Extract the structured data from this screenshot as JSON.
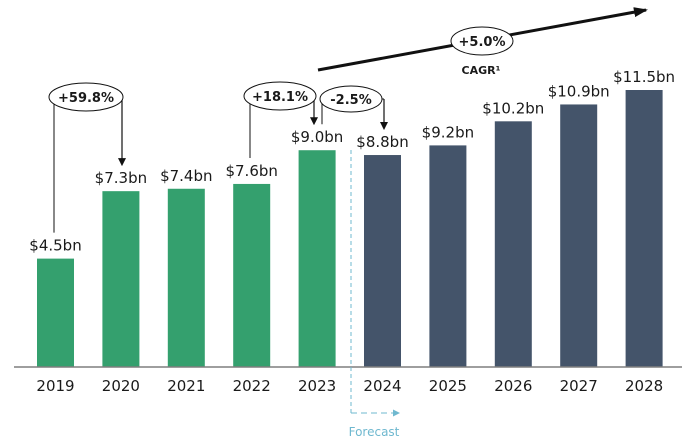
{
  "chart_data": {
    "type": "bar",
    "title": "",
    "xlabel": "",
    "ylabel": "",
    "categories": [
      "2019",
      "2020",
      "2021",
      "2022",
      "2023",
      "2024",
      "2025",
      "2026",
      "2027",
      "2028"
    ],
    "values": [
      4.5,
      7.3,
      7.4,
      7.6,
      9.0,
      8.8,
      9.2,
      10.2,
      10.9,
      11.5
    ],
    "value_labels": [
      "$4.5bn",
      "$7.3bn",
      "$7.4bn",
      "$7.6bn",
      "$9.0bn",
      "$8.8bn",
      "$9.2bn",
      "$10.2bn",
      "$10.9bn",
      "$11.5bn"
    ],
    "series_kind": [
      "actual",
      "actual",
      "actual",
      "actual",
      "actual",
      "forecast",
      "forecast",
      "forecast",
      "forecast",
      "forecast"
    ],
    "colors": {
      "actual": "#34a06e",
      "forecast": "#44546a",
      "forecast_marker": "#6fb8cf"
    },
    "ylim": [
      0,
      11.5
    ],
    "grid": false,
    "annotations": [
      {
        "type": "growth",
        "from": "2019",
        "to": "2020",
        "label": "+59.8%"
      },
      {
        "type": "growth",
        "from": "2022",
        "to": "2023",
        "label": "+18.1%"
      },
      {
        "type": "growth",
        "from": "2023",
        "to": "2024",
        "label": "-2.5%"
      },
      {
        "type": "cagr",
        "label": "+5.0%",
        "caption": "CAGR¹"
      }
    ],
    "forecast_marker": {
      "start": "2024",
      "label": "Forecast"
    }
  }
}
